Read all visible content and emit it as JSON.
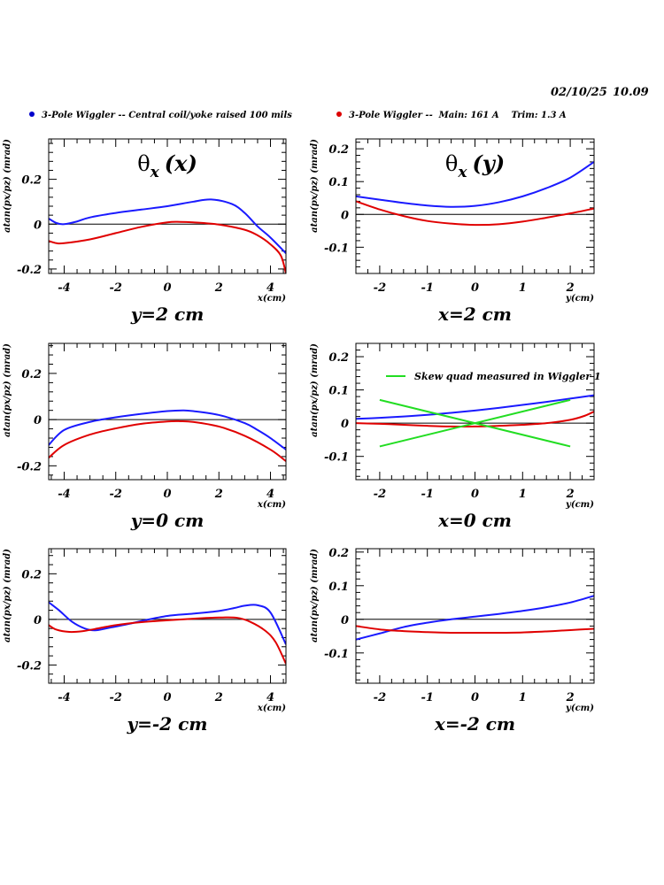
{
  "header": {
    "date": "02/10/25",
    "time": "10.09",
    "legend": [
      {
        "label": "3-Pole Wiggler -- Central coil/yoke raised 100 mils",
        "color": "#0000cc"
      },
      {
        "label": "3-Pole Wiggler --  Main: 161 A    Trim: 1.3 A",
        "color": "#dd0000"
      }
    ]
  },
  "colors": {
    "blue": "#1a1aff",
    "red": "#e00000",
    "green": "#22dd22",
    "axis": "#000000"
  },
  "chart_data": [
    {
      "type": "line",
      "title": "θx (x)",
      "caption": "y=2 cm",
      "xlabel": "x(cm)",
      "ylabel": "atan(px/pz) (mrad)",
      "xlim": [
        -4.6,
        4.6
      ],
      "ylim": [
        -0.22,
        0.38
      ],
      "xticks": [
        -4,
        -2,
        0,
        2,
        4
      ],
      "xticklabels": [
        "-4",
        "-2",
        "0",
        "2",
        "4"
      ],
      "yticks": [
        -0.2,
        0,
        0.2
      ],
      "yticklabels": [
        "-0.2",
        "0",
        "0.2"
      ],
      "series": [
        {
          "color": "blue",
          "x": [
            -4.6,
            -4.3,
            -4.0,
            -3.5,
            -3.0,
            -2.0,
            -1.0,
            0,
            1.0,
            1.7,
            2.5,
            3.0,
            3.5,
            4.0,
            4.6
          ],
          "y": [
            0.025,
            0.005,
            0.0,
            0.012,
            0.03,
            0.05,
            0.065,
            0.08,
            0.1,
            0.11,
            0.09,
            0.05,
            -0.01,
            -0.06,
            -0.13
          ]
        },
        {
          "color": "red",
          "x": [
            -4.6,
            -4.3,
            -4.0,
            -3.0,
            -2.0,
            -1.0,
            0,
            0.5,
            1.0,
            2.0,
            3.0,
            3.5,
            4.0,
            4.4,
            4.6
          ],
          "y": [
            -0.075,
            -0.085,
            -0.085,
            -0.068,
            -0.04,
            -0.012,
            0.008,
            0.01,
            0.008,
            -0.002,
            -0.025,
            -0.05,
            -0.09,
            -0.14,
            -0.22
          ]
        }
      ]
    },
    {
      "type": "line",
      "title": "θx (y)",
      "caption": "x=2 cm",
      "xlabel": "y(cm)",
      "ylabel": "atan(px/pz) (mrad)",
      "xlim": [
        -2.5,
        2.5
      ],
      "ylim": [
        -0.18,
        0.23
      ],
      "xticks": [
        -2,
        -1,
        0,
        1,
        2
      ],
      "xticklabels": [
        "-2",
        "-1",
        "0",
        "1",
        "2"
      ],
      "yticks": [
        -0.1,
        0,
        0.1,
        0.2
      ],
      "yticklabels": [
        "-0.1",
        "0",
        "0.1",
        "0.2"
      ],
      "series": [
        {
          "color": "blue",
          "x": [
            -2.5,
            -2.0,
            -1.5,
            -1.0,
            -0.5,
            0,
            0.5,
            1.0,
            1.5,
            2.0,
            2.5
          ],
          "y": [
            0.055,
            0.045,
            0.035,
            0.027,
            0.023,
            0.026,
            0.037,
            0.055,
            0.08,
            0.112,
            0.16
          ]
        },
        {
          "color": "red",
          "x": [
            -2.5,
            -2.0,
            -1.5,
            -1.0,
            -0.5,
            0,
            0.5,
            1.0,
            1.5,
            2.0,
            2.5
          ],
          "y": [
            0.04,
            0.015,
            -0.005,
            -0.02,
            -0.028,
            -0.032,
            -0.03,
            -0.022,
            -0.01,
            0.003,
            0.018
          ]
        }
      ]
    },
    {
      "type": "line",
      "title": "",
      "caption": "y=0 cm",
      "xlabel": "x(cm)",
      "ylabel": "atan(px/pz) (mrad)",
      "xlim": [
        -4.6,
        4.6
      ],
      "ylim": [
        -0.26,
        0.33
      ],
      "xticks": [
        -4,
        -2,
        0,
        2,
        4
      ],
      "xticklabels": [
        "-4",
        "-2",
        "0",
        "2",
        "4"
      ],
      "yticks": [
        -0.2,
        0,
        0.2
      ],
      "yticklabels": [
        "-0.2",
        "0",
        "0.2"
      ],
      "series": [
        {
          "color": "blue",
          "x": [
            -4.6,
            -4.0,
            -3.0,
            -2.0,
            -1.0,
            0,
            0.6,
            1.0,
            2.0,
            3.0,
            3.5,
            4.0,
            4.6
          ],
          "y": [
            -0.11,
            -0.045,
            -0.01,
            0.01,
            0.025,
            0.037,
            0.04,
            0.037,
            0.02,
            -0.015,
            -0.045,
            -0.08,
            -0.13
          ]
        },
        {
          "color": "red",
          "x": [
            -4.6,
            -4.0,
            -3.0,
            -2.0,
            -1.0,
            0,
            0.5,
            1.0,
            2.0,
            3.0,
            4.0,
            4.6
          ],
          "y": [
            -0.165,
            -0.11,
            -0.065,
            -0.038,
            -0.018,
            -0.008,
            -0.007,
            -0.01,
            -0.03,
            -0.07,
            -0.13,
            -0.18
          ]
        }
      ]
    },
    {
      "type": "line",
      "title": "",
      "caption": "x=0 cm",
      "xlabel": "y(cm)",
      "ylabel": "atan(px/pz) (mrad)",
      "xlim": [
        -2.5,
        2.5
      ],
      "ylim": [
        -0.17,
        0.24
      ],
      "xticks": [
        -2,
        -1,
        0,
        1,
        2
      ],
      "xticklabels": [
        "-2",
        "-1",
        "0",
        "1",
        "2"
      ],
      "yticks": [
        -0.1,
        0,
        0.1,
        0.2
      ],
      "yticklabels": [
        "-0.1",
        "0",
        "0.1",
        "0.2"
      ],
      "annotation": "Skew quad measured in Wiggler 1",
      "series": [
        {
          "color": "blue",
          "x": [
            -2.5,
            -2.0,
            -1.5,
            -1.0,
            -0.5,
            0,
            0.5,
            1.0,
            1.5,
            2.0,
            2.5
          ],
          "y": [
            0.013,
            0.016,
            0.02,
            0.025,
            0.031,
            0.038,
            0.046,
            0.055,
            0.064,
            0.074,
            0.084
          ]
        },
        {
          "color": "red",
          "x": [
            -2.5,
            -2.0,
            -1.5,
            -1.0,
            -0.5,
            0,
            0.5,
            1.0,
            1.5,
            2.0,
            2.3,
            2.5
          ],
          "y": [
            0.0,
            -0.002,
            -0.005,
            -0.008,
            -0.01,
            -0.01,
            -0.008,
            -0.005,
            0.0,
            0.01,
            0.022,
            0.035
          ]
        },
        {
          "color": "green",
          "x": [
            -2,
            2
          ],
          "y": [
            0.07,
            -0.07
          ]
        },
        {
          "color": "green",
          "x": [
            -2,
            2
          ],
          "y": [
            -0.07,
            0.07
          ]
        }
      ]
    },
    {
      "type": "line",
      "title": "",
      "caption": "y=-2 cm",
      "xlabel": "x(cm)",
      "ylabel": "atan(px/pz) (mrad)",
      "xlim": [
        -4.6,
        4.6
      ],
      "ylim": [
        -0.28,
        0.31
      ],
      "xticks": [
        -4,
        -2,
        0,
        2,
        4
      ],
      "xticklabels": [
        "-4",
        "-2",
        "0",
        "2",
        "4"
      ],
      "yticks": [
        -0.2,
        0,
        0.2
      ],
      "yticklabels": [
        "-0.2",
        "0",
        "0.2"
      ],
      "series": [
        {
          "color": "blue",
          "x": [
            -4.6,
            -4.2,
            -3.7,
            -3.2,
            -2.8,
            -2.3,
            -1.5,
            -1.0,
            0,
            1.0,
            2.0,
            2.6,
            3.0,
            3.5,
            4.0,
            4.6
          ],
          "y": [
            0.075,
            0.04,
            -0.01,
            -0.04,
            -0.048,
            -0.038,
            -0.02,
            -0.007,
            0.015,
            0.025,
            0.037,
            0.05,
            0.06,
            0.062,
            0.03,
            -0.11
          ]
        },
        {
          "color": "red",
          "x": [
            -4.6,
            -4.3,
            -3.8,
            -3.3,
            -2.8,
            -2.0,
            -1.0,
            0,
            1.0,
            2.0,
            2.7,
            3.2,
            3.8,
            4.2,
            4.6
          ],
          "y": [
            -0.025,
            -0.045,
            -0.055,
            -0.052,
            -0.042,
            -0.025,
            -0.012,
            -0.004,
            0.003,
            0.008,
            0.007,
            -0.01,
            -0.05,
            -0.1,
            -0.195
          ]
        }
      ]
    },
    {
      "type": "line",
      "title": "",
      "caption": "x=-2 cm",
      "xlabel": "y(cm)",
      "ylabel": "atan(px/pz) (mrad)",
      "xlim": [
        -2.5,
        2.5
      ],
      "ylim": [
        -0.19,
        0.21
      ],
      "xticks": [
        -2,
        -1,
        0,
        1,
        2
      ],
      "xticklabels": [
        "-2",
        "-1",
        "0",
        "1",
        "2"
      ],
      "yticks": [
        -0.1,
        0,
        0.1,
        0.2
      ],
      "yticklabels": [
        "-0.1",
        "0",
        "0.1",
        "0.2"
      ],
      "series": [
        {
          "color": "blue",
          "x": [
            -2.5,
            -2.0,
            -1.5,
            -1.0,
            -0.5,
            0,
            0.5,
            1.0,
            1.5,
            2.0,
            2.5
          ],
          "y": [
            -0.06,
            -0.042,
            -0.023,
            -0.01,
            0.0,
            0.008,
            0.016,
            0.025,
            0.036,
            0.05,
            0.07
          ]
        },
        {
          "color": "red",
          "x": [
            -2.5,
            -2.0,
            -1.5,
            -1.0,
            -0.5,
            0,
            0.5,
            1.0,
            1.5,
            2.0,
            2.5
          ],
          "y": [
            -0.02,
            -0.03,
            -0.035,
            -0.038,
            -0.04,
            -0.04,
            -0.04,
            -0.039,
            -0.036,
            -0.032,
            -0.028
          ]
        }
      ]
    }
  ]
}
